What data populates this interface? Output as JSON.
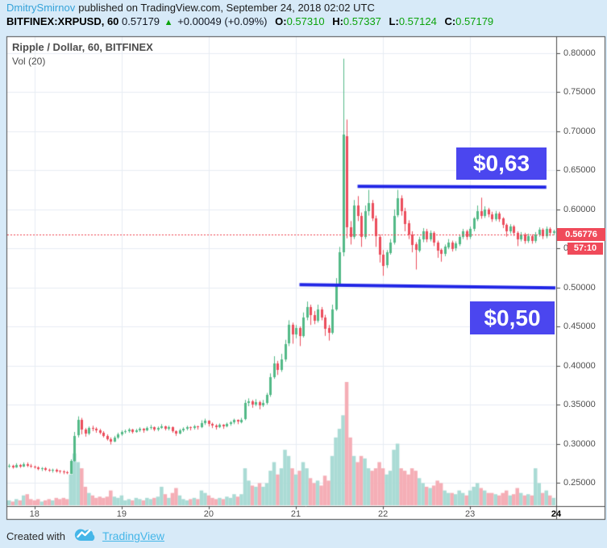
{
  "header": {
    "author": "DmitrySmirnov",
    "published": "published on TradingView.com, September 24, 2018 02:02 UTC",
    "symbol": "BITFINEX:XRPUSD, 60",
    "last_price": "0.57179",
    "up_arrow": "▲",
    "change": "+0.00049 (+0.09%)",
    "ohlc": [
      {
        "label": "O:",
        "value": "0.57310"
      },
      {
        "label": "H:",
        "value": "0.57337"
      },
      {
        "label": "L:",
        "value": "0.57124"
      },
      {
        "label": "C:",
        "value": "0.57179"
      }
    ]
  },
  "pane": {
    "title": "Ripple / Dollar, 60, BITFINEX",
    "legend": "Vol (20)"
  },
  "annotations": {
    "resistance_label": "$0,63",
    "support_label": "$0,50"
  },
  "price_axis": {
    "current_price": "0.56776",
    "countdown": "57:10",
    "ticks": [
      "0.80000",
      "0.75000",
      "0.70000",
      "0.65000",
      "0.60000",
      "0.55000",
      "0.50000",
      "0.45000",
      "0.40000",
      "0.35000",
      "0.30000",
      "0.25000"
    ]
  },
  "time_axis": {
    "ticks": [
      {
        "label": "18",
        "day": 18,
        "bold": false
      },
      {
        "label": "19",
        "day": 19,
        "bold": false
      },
      {
        "label": "20",
        "day": 20,
        "bold": false
      },
      {
        "label": "21",
        "day": 21,
        "bold": false
      },
      {
        "label": "22",
        "day": 22,
        "bold": false
      },
      {
        "label": "23",
        "day": 23,
        "bold": false
      },
      {
        "label": "24",
        "day": 24,
        "bold": true
      }
    ]
  },
  "footer": {
    "created_with": "Created with",
    "brand": "TradingView"
  },
  "colors": {
    "page_bg": "#d7eaf8",
    "chart_bg": "#ffffff",
    "border": "#4a4a4a",
    "grid": "#e7edf3",
    "candle_up": "#53b987",
    "candle_down": "#eb4d5c",
    "volume_up": "#aadbd5",
    "volume_down": "#f5aeb6",
    "trendline": "#2126e6",
    "annotation_bg": "#4b46ef",
    "current_price_line": "#f0414e",
    "label_down_bg": "#f04a5a",
    "axis_text": "#4f4f4f",
    "link_blue": "#36a3d9",
    "value_green": "#0ba30b",
    "brand_blue": "#45b6e8"
  },
  "chart_data": {
    "type": "candlestick+volume",
    "title": "Ripple / Dollar, 60, BITFINEX",
    "symbol": "BITFINEX:XRPUSD",
    "interval": "60",
    "start": "2018-09-17 17:00 UTC",
    "interval_hours": 1,
    "first_day_tick_index": 7,
    "ylim": [
      0.23,
      0.82
    ],
    "y_gridlines": [
      0.25,
      0.3,
      0.35,
      0.4,
      0.45,
      0.5,
      0.55,
      0.6,
      0.65,
      0.7,
      0.75,
      0.8
    ],
    "current_price": 0.56776,
    "volume_max_rel": 100,
    "trendlines": [
      {
        "name": "resistance",
        "label": "$0,63",
        "i1": 96,
        "price1": 0.6295,
        "i2": 148,
        "price2": 0.6285
      },
      {
        "name": "support",
        "label": "$0,50",
        "i1": 80,
        "price1": 0.5035,
        "i2": 150.8,
        "price2": 0.4995
      }
    ],
    "candle_format": [
      "open",
      "high",
      "low",
      "close",
      "volume_rel"
    ],
    "candles": [
      [
        0.271,
        0.274,
        0.269,
        0.272,
        4
      ],
      [
        0.272,
        0.273,
        0.268,
        0.27,
        3
      ],
      [
        0.27,
        0.275,
        0.269,
        0.273,
        5
      ],
      [
        0.273,
        0.274,
        0.269,
        0.271,
        4
      ],
      [
        0.271,
        0.276,
        0.27,
        0.274,
        8
      ],
      [
        0.274,
        0.276,
        0.27,
        0.272,
        9
      ],
      [
        0.272,
        0.274,
        0.269,
        0.271,
        5
      ],
      [
        0.271,
        0.272,
        0.268,
        0.27,
        4
      ],
      [
        0.27,
        0.271,
        0.266,
        0.268,
        5
      ],
      [
        0.268,
        0.27,
        0.265,
        0.269,
        3
      ],
      [
        0.269,
        0.27,
        0.265,
        0.267,
        4
      ],
      [
        0.267,
        0.268,
        0.264,
        0.266,
        5
      ],
      [
        0.266,
        0.268,
        0.263,
        0.267,
        4
      ],
      [
        0.267,
        0.268,
        0.263,
        0.265,
        6
      ],
      [
        0.265,
        0.266,
        0.262,
        0.264,
        5
      ],
      [
        0.264,
        0.266,
        0.261,
        0.263,
        6
      ],
      [
        0.263,
        0.265,
        0.261,
        0.262,
        5
      ],
      [
        0.262,
        0.28,
        0.261,
        0.278,
        25
      ],
      [
        0.278,
        0.315,
        0.277,
        0.31,
        42
      ],
      [
        0.31,
        0.335,
        0.308,
        0.33,
        35
      ],
      [
        0.33,
        0.333,
        0.312,
        0.318,
        30
      ],
      [
        0.318,
        0.32,
        0.309,
        0.313,
        15
      ],
      [
        0.313,
        0.322,
        0.311,
        0.32,
        10
      ],
      [
        0.32,
        0.323,
        0.316,
        0.319,
        8
      ],
      [
        0.319,
        0.321,
        0.314,
        0.317,
        6
      ],
      [
        0.317,
        0.319,
        0.312,
        0.314,
        7
      ],
      [
        0.314,
        0.316,
        0.308,
        0.31,
        6
      ],
      [
        0.31,
        0.312,
        0.304,
        0.306,
        7
      ],
      [
        0.306,
        0.308,
        0.299,
        0.303,
        12
      ],
      [
        0.303,
        0.31,
        0.302,
        0.308,
        7
      ],
      [
        0.308,
        0.314,
        0.306,
        0.312,
        6
      ],
      [
        0.312,
        0.317,
        0.31,
        0.315,
        8
      ],
      [
        0.315,
        0.318,
        0.313,
        0.316,
        4
      ],
      [
        0.316,
        0.32,
        0.314,
        0.318,
        5
      ],
      [
        0.318,
        0.319,
        0.313,
        0.315,
        4
      ],
      [
        0.315,
        0.319,
        0.314,
        0.317,
        6
      ],
      [
        0.317,
        0.321,
        0.315,
        0.319,
        5
      ],
      [
        0.319,
        0.32,
        0.314,
        0.317,
        4
      ],
      [
        0.317,
        0.322,
        0.316,
        0.32,
        6
      ],
      [
        0.32,
        0.324,
        0.318,
        0.321,
        5
      ],
      [
        0.321,
        0.322,
        0.316,
        0.318,
        6
      ],
      [
        0.318,
        0.322,
        0.316,
        0.32,
        7
      ],
      [
        0.32,
        0.325,
        0.319,
        0.322,
        15
      ],
      [
        0.322,
        0.323,
        0.317,
        0.319,
        9
      ],
      [
        0.319,
        0.323,
        0.317,
        0.321,
        6
      ],
      [
        0.321,
        0.322,
        0.314,
        0.316,
        10
      ],
      [
        0.316,
        0.317,
        0.31,
        0.313,
        14
      ],
      [
        0.313,
        0.319,
        0.312,
        0.317,
        8
      ],
      [
        0.317,
        0.321,
        0.315,
        0.319,
        5
      ],
      [
        0.319,
        0.323,
        0.317,
        0.321,
        4
      ],
      [
        0.321,
        0.322,
        0.317,
        0.32,
        5
      ],
      [
        0.32,
        0.324,
        0.318,
        0.322,
        6
      ],
      [
        0.322,
        0.323,
        0.318,
        0.321,
        5
      ],
      [
        0.321,
        0.33,
        0.32,
        0.326,
        12
      ],
      [
        0.326,
        0.332,
        0.324,
        0.329,
        10
      ],
      [
        0.329,
        0.33,
        0.322,
        0.325,
        8
      ],
      [
        0.325,
        0.327,
        0.32,
        0.323,
        6
      ],
      [
        0.323,
        0.325,
        0.318,
        0.321,
        5
      ],
      [
        0.321,
        0.326,
        0.32,
        0.324,
        6
      ],
      [
        0.324,
        0.325,
        0.319,
        0.322,
        5
      ],
      [
        0.322,
        0.327,
        0.321,
        0.325,
        7
      ],
      [
        0.325,
        0.329,
        0.323,
        0.327,
        6
      ],
      [
        0.327,
        0.332,
        0.325,
        0.33,
        9
      ],
      [
        0.33,
        0.331,
        0.325,
        0.328,
        7
      ],
      [
        0.328,
        0.333,
        0.326,
        0.331,
        9
      ],
      [
        0.331,
        0.356,
        0.33,
        0.352,
        30
      ],
      [
        0.352,
        0.358,
        0.348,
        0.354,
        20
      ],
      [
        0.354,
        0.356,
        0.346,
        0.35,
        16
      ],
      [
        0.35,
        0.357,
        0.348,
        0.353,
        15
      ],
      [
        0.353,
        0.355,
        0.344,
        0.349,
        18
      ],
      [
        0.349,
        0.356,
        0.347,
        0.352,
        15
      ],
      [
        0.352,
        0.365,
        0.35,
        0.362,
        18
      ],
      [
        0.362,
        0.39,
        0.36,
        0.385,
        28
      ],
      [
        0.385,
        0.412,
        0.383,
        0.403,
        35
      ],
      [
        0.403,
        0.406,
        0.388,
        0.395,
        25
      ],
      [
        0.395,
        0.415,
        0.392,
        0.408,
        30
      ],
      [
        0.408,
        0.433,
        0.405,
        0.428,
        45
      ],
      [
        0.428,
        0.458,
        0.425,
        0.452,
        40
      ],
      [
        0.452,
        0.455,
        0.428,
        0.44,
        30
      ],
      [
        0.44,
        0.452,
        0.435,
        0.448,
        25
      ],
      [
        0.448,
        0.45,
        0.425,
        0.438,
        28
      ],
      [
        0.438,
        0.468,
        0.436,
        0.462,
        35
      ],
      [
        0.462,
        0.482,
        0.458,
        0.475,
        30
      ],
      [
        0.475,
        0.478,
        0.452,
        0.465,
        22
      ],
      [
        0.465,
        0.47,
        0.453,
        0.458,
        18
      ],
      [
        0.458,
        0.478,
        0.455,
        0.472,
        20
      ],
      [
        0.472,
        0.475,
        0.458,
        0.462,
        16
      ],
      [
        0.462,
        0.465,
        0.438,
        0.448,
        24
      ],
      [
        0.448,
        0.452,
        0.432,
        0.442,
        20
      ],
      [
        0.442,
        0.478,
        0.44,
        0.472,
        40
      ],
      [
        0.472,
        0.512,
        0.47,
        0.505,
        55
      ],
      [
        0.505,
        0.552,
        0.502,
        0.545,
        62
      ],
      [
        0.545,
        0.793,
        0.54,
        0.696,
        73
      ],
      [
        0.694,
        0.715,
        0.563,
        0.577,
        100
      ],
      [
        0.577,
        0.585,
        0.555,
        0.565,
        55
      ],
      [
        0.565,
        0.612,
        0.562,
        0.605,
        40
      ],
      [
        0.605,
        0.617,
        0.585,
        0.592,
        35
      ],
      [
        0.592,
        0.596,
        0.552,
        0.565,
        40
      ],
      [
        0.565,
        0.605,
        0.562,
        0.598,
        38
      ],
      [
        0.598,
        0.625,
        0.592,
        0.608,
        30
      ],
      [
        0.608,
        0.612,
        0.585,
        0.588,
        28
      ],
      [
        0.588,
        0.592,
        0.552,
        0.565,
        30
      ],
      [
        0.565,
        0.568,
        0.532,
        0.542,
        35
      ],
      [
        0.542,
        0.548,
        0.515,
        0.528,
        30
      ],
      [
        0.528,
        0.548,
        0.525,
        0.545,
        25
      ],
      [
        0.545,
        0.562,
        0.542,
        0.558,
        28
      ],
      [
        0.558,
        0.6,
        0.555,
        0.592,
        45
      ],
      [
        0.592,
        0.625,
        0.59,
        0.614,
        50
      ],
      [
        0.614,
        0.618,
        0.592,
        0.598,
        30
      ],
      [
        0.598,
        0.602,
        0.572,
        0.582,
        28
      ],
      [
        0.582,
        0.586,
        0.562,
        0.568,
        25
      ],
      [
        0.568,
        0.572,
        0.545,
        0.555,
        30
      ],
      [
        0.555,
        0.558,
        0.523,
        0.548,
        28
      ],
      [
        0.548,
        0.565,
        0.545,
        0.562,
        22
      ],
      [
        0.562,
        0.576,
        0.558,
        0.572,
        18
      ],
      [
        0.572,
        0.575,
        0.558,
        0.562,
        15
      ],
      [
        0.562,
        0.573,
        0.559,
        0.57,
        14
      ],
      [
        0.57,
        0.572,
        0.553,
        0.558,
        16
      ],
      [
        0.558,
        0.56,
        0.538,
        0.548,
        20
      ],
      [
        0.548,
        0.55,
        0.533,
        0.543,
        18
      ],
      [
        0.543,
        0.555,
        0.54,
        0.552,
        12
      ],
      [
        0.552,
        0.562,
        0.549,
        0.558,
        10
      ],
      [
        0.558,
        0.56,
        0.546,
        0.55,
        10
      ],
      [
        0.55,
        0.559,
        0.547,
        0.556,
        9
      ],
      [
        0.556,
        0.568,
        0.553,
        0.565,
        12
      ],
      [
        0.565,
        0.575,
        0.562,
        0.572,
        10
      ],
      [
        0.572,
        0.574,
        0.561,
        0.565,
        8
      ],
      [
        0.565,
        0.578,
        0.562,
        0.575,
        12
      ],
      [
        0.575,
        0.59,
        0.572,
        0.588,
        15
      ],
      [
        0.588,
        0.605,
        0.585,
        0.598,
        18
      ],
      [
        0.598,
        0.615,
        0.588,
        0.592,
        14
      ],
      [
        0.592,
        0.604,
        0.589,
        0.6,
        12
      ],
      [
        0.6,
        0.602,
        0.59,
        0.594,
        10
      ],
      [
        0.594,
        0.597,
        0.584,
        0.588,
        10
      ],
      [
        0.588,
        0.598,
        0.585,
        0.595,
        9
      ],
      [
        0.595,
        0.597,
        0.584,
        0.588,
        8
      ],
      [
        0.588,
        0.59,
        0.576,
        0.58,
        10
      ],
      [
        0.58,
        0.582,
        0.565,
        0.572,
        12
      ],
      [
        0.572,
        0.581,
        0.569,
        0.578,
        8
      ],
      [
        0.578,
        0.58,
        0.566,
        0.57,
        9
      ],
      [
        0.57,
        0.572,
        0.553,
        0.562,
        14
      ],
      [
        0.562,
        0.571,
        0.559,
        0.568,
        10
      ],
      [
        0.568,
        0.57,
        0.556,
        0.56,
        8
      ],
      [
        0.56,
        0.569,
        0.557,
        0.566,
        9
      ],
      [
        0.566,
        0.568,
        0.556,
        0.56,
        8
      ],
      [
        0.56,
        0.571,
        0.557,
        0.568,
        30
      ],
      [
        0.568,
        0.577,
        0.565,
        0.574,
        18
      ],
      [
        0.574,
        0.576,
        0.562,
        0.566,
        10
      ],
      [
        0.566,
        0.578,
        0.563,
        0.575,
        12
      ],
      [
        0.575,
        0.577,
        0.566,
        0.57,
        8
      ],
      [
        0.57,
        0.574,
        0.567,
        0.572,
        6
      ]
    ]
  }
}
